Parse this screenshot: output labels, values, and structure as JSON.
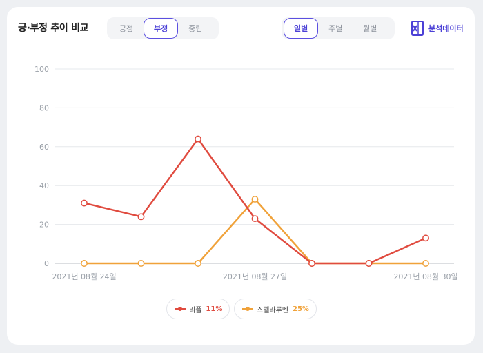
{
  "header": {
    "title": "긍·부정 추이 비교",
    "sentiment_tabs": [
      {
        "label": "긍정",
        "active": false
      },
      {
        "label": "부정",
        "active": true
      },
      {
        "label": "중립",
        "active": false
      }
    ],
    "period_tabs": [
      {
        "label": "일별",
        "active": true
      },
      {
        "label": "주별",
        "active": false
      },
      {
        "label": "월별",
        "active": false
      }
    ],
    "export_label": "분석데이터",
    "export_icon": "excel-icon"
  },
  "legend": [
    {
      "name": "리플",
      "pct": "11%",
      "color": "#e04b3f"
    },
    {
      "name": "스텔라루멘",
      "pct": "25%",
      "color": "#f0a23a"
    }
  ],
  "colors": {
    "accent": "#4b40d6",
    "series1": "#e04b3f",
    "series2": "#f0a23a"
  },
  "chart_data": {
    "type": "line",
    "ylim": [
      0,
      100
    ],
    "yticks": [
      "100",
      "80",
      "60",
      "40",
      "20",
      "0"
    ],
    "xtick_labels": [
      "2021년 08월 24일",
      "2021년 08월 27일",
      "2021년 08월 30일"
    ],
    "x": [
      "2021-08-24",
      "2021-08-25",
      "2021-08-26",
      "2021-08-27",
      "2021-08-28",
      "2021-08-29",
      "2021-08-30"
    ],
    "grid": true,
    "series": [
      {
        "name": "리플",
        "values": [
          31,
          24,
          64,
          23,
          0,
          0,
          13
        ]
      },
      {
        "name": "스텔라루멘",
        "values": [
          0,
          0,
          0,
          33,
          0,
          0,
          0
        ]
      }
    ]
  }
}
